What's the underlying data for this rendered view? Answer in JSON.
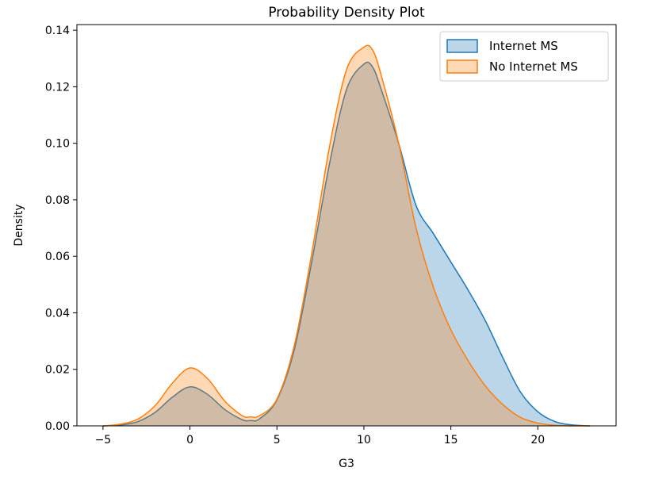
{
  "chart_data": {
    "type": "area",
    "title": "Probability Density Plot",
    "xlabel": "G3",
    "ylabel": "Density",
    "xlim": [
      -6.5,
      24.5
    ],
    "ylim": [
      0,
      0.142
    ],
    "xticks": [
      -5,
      0,
      5,
      10,
      15,
      20
    ],
    "yticks": [
      0.0,
      0.02,
      0.04,
      0.06,
      0.08,
      0.1,
      0.12,
      0.14
    ],
    "ytick_labels": [
      "0.00",
      "0.02",
      "0.04",
      "0.06",
      "0.08",
      "0.10",
      "0.12",
      "0.14"
    ],
    "grid": false,
    "legend_position": "top-right",
    "x": [
      -5,
      -4,
      -3,
      -2,
      -1,
      0,
      1,
      2,
      3,
      3.5,
      4,
      5,
      6,
      7,
      8,
      9,
      10,
      10.5,
      11,
      12,
      13,
      14,
      15,
      16,
      17,
      18,
      19,
      20,
      21,
      22,
      23
    ],
    "series": [
      {
        "name": "Internet MS",
        "color": "#1f77b4",
        "values": [
          0.0,
          0.0003,
          0.0015,
          0.0048,
          0.0102,
          0.0138,
          0.0112,
          0.0058,
          0.0022,
          0.0019,
          0.0025,
          0.0092,
          0.027,
          0.058,
          0.092,
          0.119,
          0.128,
          0.127,
          0.119,
          0.1,
          0.078,
          0.068,
          0.058,
          0.048,
          0.037,
          0.024,
          0.012,
          0.005,
          0.0015,
          0.0003,
          0.0
        ]
      },
      {
        "name": "No Internet MS",
        "color": "#ff7f0e",
        "values": [
          0.0,
          0.0006,
          0.0024,
          0.0072,
          0.0152,
          0.0205,
          0.0168,
          0.0088,
          0.0036,
          0.0032,
          0.0036,
          0.0095,
          0.0285,
          0.061,
          0.098,
          0.126,
          0.134,
          0.133,
          0.124,
          0.1,
          0.07,
          0.049,
          0.034,
          0.023,
          0.014,
          0.0075,
          0.003,
          0.001,
          0.0002,
          0.0,
          0.0
        ]
      }
    ]
  }
}
